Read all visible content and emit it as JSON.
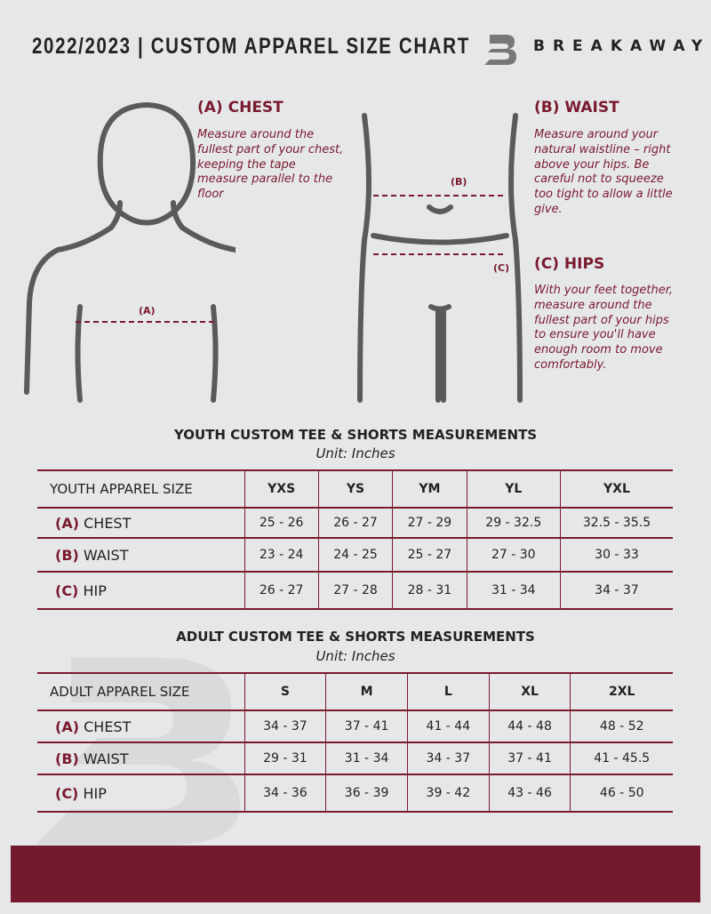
{
  "header": {
    "title": "2022/2023  |  CUSTOM APPAREL SIZE CHART",
    "brand": "BREAKAWAY"
  },
  "measures": {
    "chest": {
      "title": "(A) CHEST",
      "desc": "Measure around the fullest part of your chest, keeping the tape measure parallel to the floor",
      "label": "(A)"
    },
    "waist": {
      "title": "(B) WAIST",
      "desc": "Measure around your natural waistline – right above your hips. Be careful not to squeeze too tight to allow a little give.",
      "label": "(B)"
    },
    "hips": {
      "title": "(C) HIPS",
      "desc": "With your feet together, measure around the fullest part of your hips to ensure you'll have enough room to move comfortably.",
      "label": "(C)"
    }
  },
  "youth": {
    "title": "YOUTH CUSTOM TEE & SHORTS MEASUREMENTS",
    "unit": "Unit: Inches",
    "header": "YOUTH APPAREL SIZE",
    "sizes": [
      "YXS",
      "YS",
      "YM",
      "YL",
      "YXL"
    ],
    "rows": [
      {
        "code": "(A)",
        "name": "CHEST",
        "values": [
          "25 - 26",
          "26 - 27",
          "27 - 29",
          "29 - 32.5",
          "32.5 - 35.5"
        ]
      },
      {
        "code": "(B)",
        "name": "WAIST",
        "values": [
          "23 - 24",
          "24 - 25",
          "25 - 27",
          "27 - 30",
          "30 - 33"
        ]
      },
      {
        "code": "(C)",
        "name": "HIP",
        "values": [
          "26 - 27",
          "27 - 28",
          "28 - 31",
          "31 - 34",
          "34 - 37"
        ]
      }
    ]
  },
  "adult": {
    "title": "ADULT CUSTOM TEE & SHORTS MEASUREMENTS",
    "unit": "Unit: Inches",
    "header": "ADULT APPAREL SIZE",
    "sizes": [
      "S",
      "M",
      "L",
      "XL",
      "2XL"
    ],
    "rows": [
      {
        "code": "(A)",
        "name": "CHEST",
        "values": [
          "34 - 37",
          "37 - 41",
          "41 - 44",
          "44 - 48",
          "48 - 52"
        ]
      },
      {
        "code": "(B)",
        "name": "WAIST",
        "values": [
          "29 - 31",
          "31 - 34",
          "34 - 37",
          "37 - 41",
          "41 - 45.5"
        ]
      },
      {
        "code": "(C)",
        "name": "HIP",
        "values": [
          "34 - 36",
          "36 - 39",
          "39 - 42",
          "43 - 46",
          "46 - 50"
        ]
      }
    ]
  },
  "colors": {
    "accent": "#7a1a2e",
    "background": "#e6e7e9",
    "footer": "#731a2e"
  }
}
